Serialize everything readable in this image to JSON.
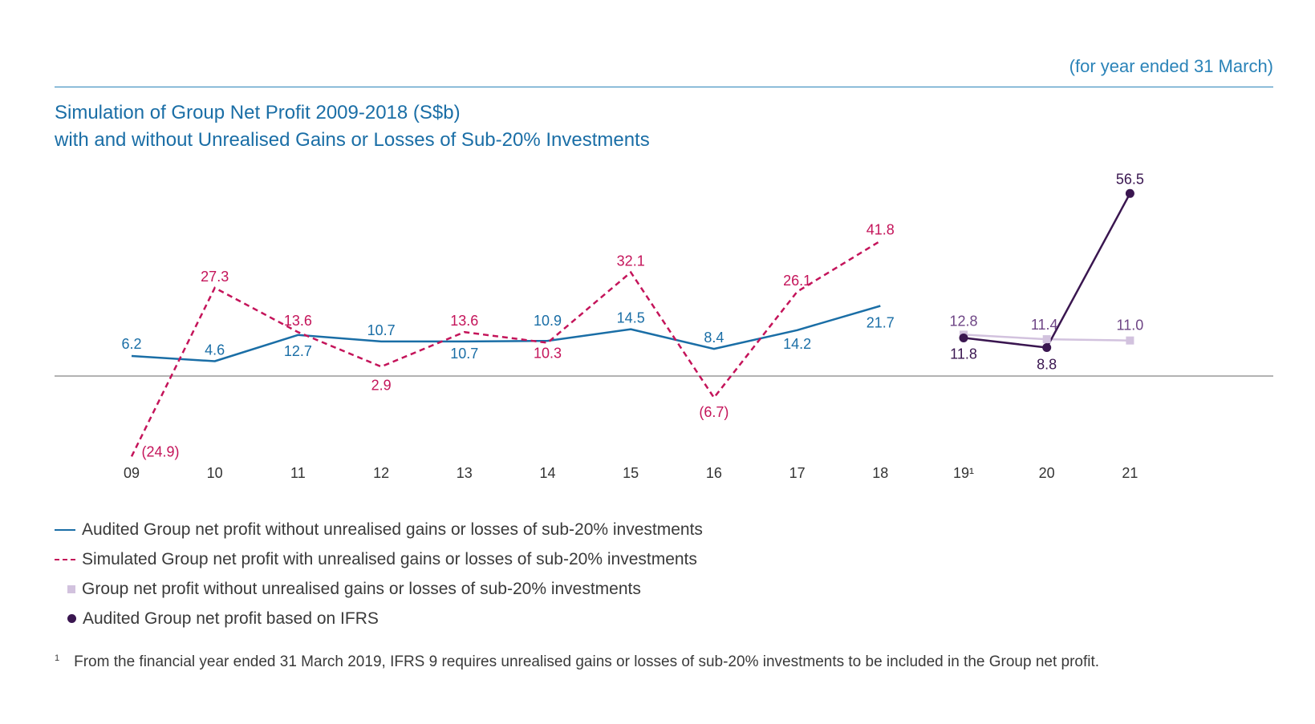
{
  "header": {
    "period_note": "(for year ended 31 March)",
    "title_line1": "Simulation of Group Net Profit 2009-2018 (S$b)",
    "title_line2": "with and without Unrealised Gains or Losses of Sub-20% Investments"
  },
  "chart_data": {
    "type": "line",
    "title": "Simulation of Group Net Profit 2009-2018 (S$b) with and without Unrealised Gains or Losses of Sub-20% Investments",
    "xlabel": "",
    "ylabel": "",
    "categories": [
      "09",
      "10",
      "11",
      "12",
      "13",
      "14",
      "15",
      "16",
      "17",
      "18",
      "19¹",
      "20",
      "21"
    ],
    "ylim": [
      -26,
      60
    ],
    "grid": false,
    "colors": {
      "audited": "#1a6ea6",
      "simulated": "#c4145a",
      "ifrs_without": "#d2c2de",
      "ifrs_audited": "#3a1650",
      "ifrs_label_light": "#6e4585",
      "axis": "#9a9a9a",
      "tick": "#333333"
    },
    "series": [
      {
        "name": "Audited Group net profit without unrealised gains or losses of sub-20% investments",
        "style": "solid",
        "x": [
          "09",
          "10",
          "11",
          "12",
          "13",
          "14",
          "15",
          "16",
          "17",
          "18"
        ],
        "values": [
          6.2,
          4.6,
          12.7,
          10.7,
          10.7,
          10.9,
          14.5,
          8.4,
          14.2,
          21.7
        ],
        "labels": [
          "6.2",
          "4.6",
          "12.7",
          "10.7",
          "10.7",
          "10.9",
          "14.5",
          "8.4",
          "14.2",
          "21.7"
        ]
      },
      {
        "name": "Simulated Group net profit with unrealised gains or losses of sub-20% investments",
        "style": "dashed",
        "x": [
          "09",
          "10",
          "11",
          "12",
          "13",
          "14",
          "15",
          "16",
          "17",
          "18"
        ],
        "values": [
          -24.9,
          27.3,
          13.6,
          2.9,
          13.6,
          10.3,
          32.1,
          -6.7,
          26.1,
          41.8
        ],
        "labels": [
          "(24.9)",
          "27.3",
          "13.6",
          "2.9",
          "13.6",
          "10.3",
          "32.1",
          "(6.7)",
          "26.1",
          "41.8"
        ]
      },
      {
        "name": "Group net profit without unrealised gains or losses of sub-20% investments",
        "style": "square-markers",
        "x": [
          "19¹",
          "20",
          "21"
        ],
        "values": [
          12.8,
          11.4,
          11.0
        ],
        "labels": [
          "12.8",
          "11.4",
          "11.0"
        ]
      },
      {
        "name": "Audited Group net profit based on IFRS",
        "style": "dot-markers",
        "x": [
          "19¹",
          "20",
          "21"
        ],
        "values": [
          11.8,
          8.8,
          56.5
        ],
        "labels": [
          "11.8",
          "8.8",
          "56.5"
        ]
      }
    ]
  },
  "legend": {
    "audited": "Audited Group net profit without unrealised gains or losses of sub-20% investments",
    "simulated": "Simulated Group net profit with unrealised gains or losses of sub-20% investments",
    "ifrs_without": "Group net profit without unrealised gains or losses of sub-20% investments",
    "ifrs_audited": "Audited Group net profit based on IFRS"
  },
  "footnote": {
    "marker": "1",
    "text": "From the financial year ended 31 March 2019, IFRS 9 requires unrealised gains or losses of sub-20% investments to be included in the Group net profit."
  }
}
